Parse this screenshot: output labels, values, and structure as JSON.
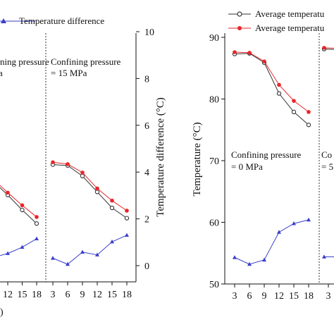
{
  "colors": {
    "black": "#333333",
    "red": "#e8262a",
    "blue": "#3a3fc8",
    "axis": "#111111"
  },
  "chart_data": [
    {
      "type": "line",
      "panel": "left (cropped)",
      "legend": {
        "entries": [
          "Temperature difference"
        ],
        "placement": "top"
      },
      "annotations": [
        "fining pressure",
        "a",
        "Confining pressure",
        "= 15 MPa"
      ],
      "xlabel": ")",
      "ylabel": "Temperature difference (°C)",
      "x_ticks_left_segment": [
        "12",
        "15",
        "18"
      ],
      "x_ticks_right_segment": [
        "3",
        "6",
        "9",
        "12",
        "15",
        "18"
      ],
      "ylim_right": [
        0,
        10
      ],
      "y_ticks_right": [
        "0",
        "2",
        "4",
        "6",
        "8",
        "10"
      ],
      "series_left_segment": [
        {
          "name": "black",
          "x": [
            12,
            15,
            18
          ],
          "y": [
            3.02,
            2.38,
            1.8
          ]
        },
        {
          "name": "red",
          "x": [
            12,
            15,
            18
          ],
          "y": [
            3.12,
            2.58,
            2.08
          ]
        },
        {
          "name": "Temperature difference",
          "x": [
            9,
            12,
            15,
            18
          ],
          "y": [
            0.35,
            0.52,
            0.79,
            1.15
          ]
        }
      ],
      "series_right_segment": [
        {
          "name": "black",
          "x": [
            3,
            6,
            9,
            12,
            15,
            18
          ],
          "y": [
            4.32,
            4.28,
            3.83,
            3.15,
            2.47,
            2.03
          ]
        },
        {
          "name": "red",
          "x": [
            3,
            6,
            9,
            12,
            15,
            18
          ],
          "y": [
            4.42,
            4.34,
            3.98,
            3.3,
            2.78,
            2.35
          ]
        },
        {
          "name": "Temperature difference",
          "x": [
            3,
            6,
            9,
            12,
            15,
            18
          ],
          "y": [
            0.32,
            0.06,
            0.58,
            0.46,
            1.02,
            1.3
          ]
        }
      ]
    },
    {
      "type": "line",
      "panel": "right (cropped)",
      "legend": {
        "entries": [
          "Average temperatu",
          "Average temperatu"
        ],
        "placement": "top"
      },
      "annotations": [
        "Confining pressure",
        "= 0 MPa",
        "Co",
        "= 5"
      ],
      "ylabel": "Temperature (°C)",
      "ylim": [
        50,
        90
      ],
      "y_ticks": [
        "50",
        "60",
        "70",
        "80",
        "90"
      ],
      "x_ticks": [
        "3",
        "6",
        "9",
        "12",
        "15",
        "18",
        "3"
      ],
      "series": [
        {
          "name": "Average temperatu",
          "color": "black",
          "x": [
            3,
            6,
            9,
            12,
            15,
            18
          ],
          "y": [
            87.3,
            87.4,
            85.9,
            80.9,
            77.9,
            75.8
          ]
        },
        {
          "name": "Average temperatu",
          "color": "red",
          "x": [
            3,
            6,
            9,
            12,
            15,
            18
          ],
          "y": [
            87.6,
            87.5,
            86.1,
            82.3,
            79.7,
            77.9
          ]
        },
        {
          "name": "blue",
          "color": "blue",
          "x": [
            3,
            6,
            9,
            12,
            15,
            18
          ],
          "y": [
            54.3,
            53.2,
            53.9,
            58.4,
            59.8,
            60.4
          ]
        }
      ],
      "partial_next_segment": {
        "black_y": 88.1,
        "red_y": 88.3,
        "blue_y": 54.4
      }
    }
  ]
}
